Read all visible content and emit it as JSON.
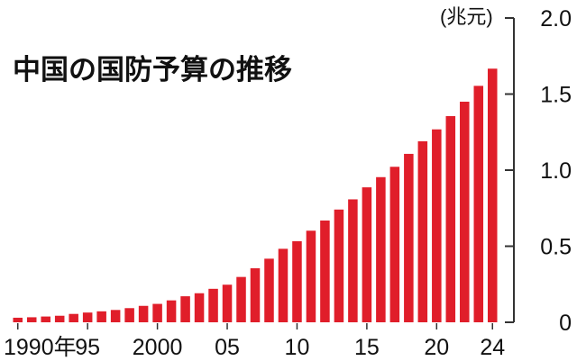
{
  "chart_data": {
    "type": "bar",
    "title": "中国の国防予算の推移",
    "unit_label": "(兆元)",
    "bar_color": "#e01e2a",
    "axis_color": "#333333",
    "ylim": [
      0,
      2.0
    ],
    "y_ticks": [
      "0",
      "0.5",
      "1.0",
      "1.5",
      "2.0"
    ],
    "x_tick_labels": [
      {
        "year": 1990,
        "label": "1990年"
      },
      {
        "year": 1995,
        "label": "95"
      },
      {
        "year": 2000,
        "label": "2000"
      },
      {
        "year": 2005,
        "label": "05"
      },
      {
        "year": 2010,
        "label": "10"
      },
      {
        "year": 2015,
        "label": "15"
      },
      {
        "year": 2020,
        "label": "20"
      },
      {
        "year": 2024,
        "label": "24"
      }
    ],
    "x": [
      1990,
      1991,
      1992,
      1993,
      1994,
      1995,
      1996,
      1997,
      1998,
      1999,
      2000,
      2001,
      2002,
      2003,
      2004,
      2005,
      2006,
      2007,
      2008,
      2009,
      2010,
      2011,
      2012,
      2013,
      2014,
      2015,
      2016,
      2017,
      2018,
      2019,
      2020,
      2021,
      2022,
      2023,
      2024
    ],
    "values": [
      0.03,
      0.033,
      0.038,
      0.043,
      0.055,
      0.064,
      0.072,
      0.081,
      0.093,
      0.108,
      0.121,
      0.144,
      0.171,
      0.191,
      0.22,
      0.247,
      0.298,
      0.355,
      0.418,
      0.483,
      0.533,
      0.602,
      0.669,
      0.741,
      0.808,
      0.887,
      0.954,
      1.022,
      1.107,
      1.19,
      1.268,
      1.355,
      1.45,
      1.554,
      1.667
    ]
  }
}
